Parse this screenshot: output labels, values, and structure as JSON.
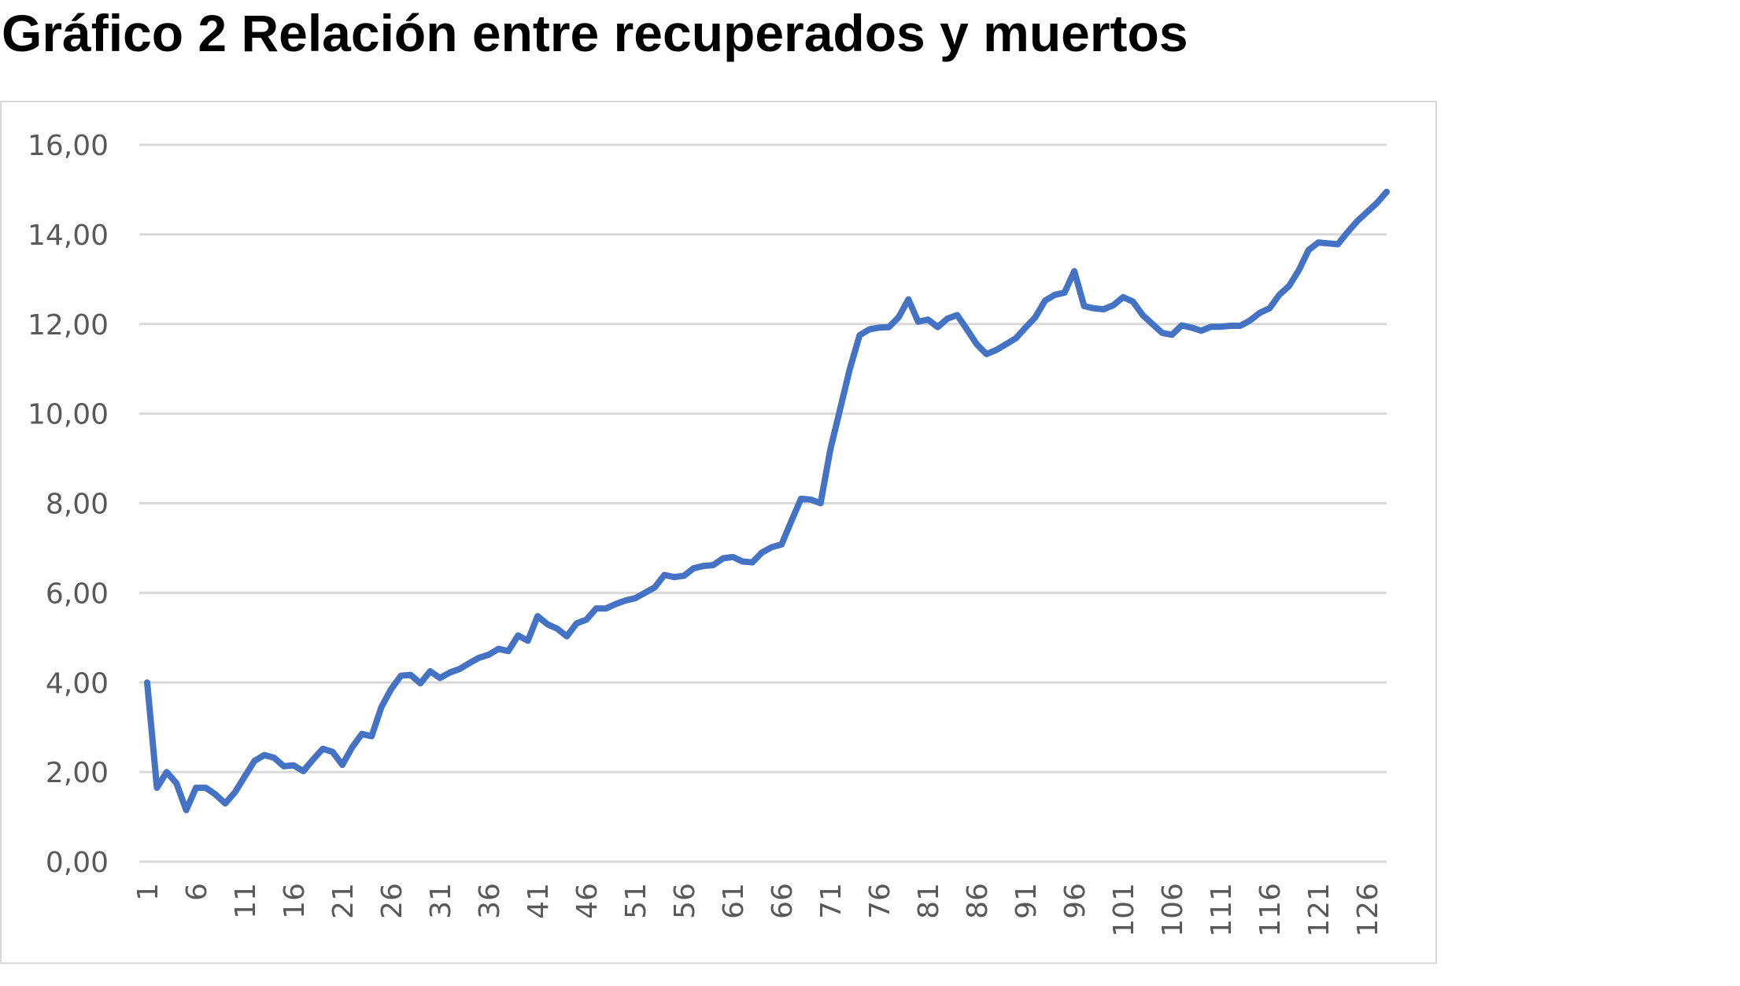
{
  "title": "Gráfico 2 Relación entre recuperados y muertos",
  "chart_data": {
    "type": "line",
    "title": "Gráfico 2 Relación entre recuperados y muertos",
    "xlabel": "",
    "ylabel": "",
    "ylim": [
      0,
      16
    ],
    "y_ticks": [
      "0,00",
      "2,00",
      "4,00",
      "6,00",
      "8,00",
      "10,00",
      "12,00",
      "14,00",
      "16,00"
    ],
    "x_ticks": [
      "1",
      "6",
      "11",
      "16",
      "21",
      "26",
      "31",
      "36",
      "41",
      "46",
      "51",
      "56",
      "61",
      "66",
      "71",
      "76",
      "81",
      "86",
      "91",
      "96",
      "101",
      "106",
      "111",
      "116",
      "121",
      "126"
    ],
    "grid": true,
    "legend": "none",
    "line_color": "#4472C4",
    "x": [
      1,
      2,
      3,
      4,
      5,
      6,
      7,
      8,
      9,
      10,
      11,
      12,
      13,
      14,
      15,
      16,
      17,
      18,
      19,
      20,
      21,
      22,
      23,
      24,
      25,
      26,
      27,
      28,
      29,
      30,
      31,
      32,
      33,
      34,
      35,
      36,
      37,
      38,
      39,
      40,
      41,
      42,
      43,
      44,
      45,
      46,
      47,
      48,
      49,
      50,
      51,
      52,
      53,
      54,
      55,
      56,
      57,
      58,
      59,
      60,
      61,
      62,
      63,
      64,
      65,
      66,
      67,
      68,
      69,
      70,
      71,
      72,
      73,
      74,
      75,
      76,
      77,
      78,
      79,
      80,
      81,
      82,
      83,
      84,
      85,
      86,
      87,
      88,
      89,
      90,
      91,
      92,
      93,
      94,
      95,
      96,
      97,
      98,
      99,
      100,
      101,
      102,
      103,
      104,
      105,
      106,
      107,
      108,
      109,
      110,
      111,
      112,
      113,
      114,
      115,
      116,
      117,
      118,
      119,
      120,
      121,
      122,
      123,
      124,
      125,
      126,
      127,
      128
    ],
    "values": [
      4.0,
      1.65,
      2.0,
      1.75,
      1.15,
      1.65,
      1.65,
      1.5,
      1.3,
      1.55,
      1.9,
      2.25,
      2.38,
      2.32,
      2.13,
      2.15,
      2.02,
      2.28,
      2.52,
      2.45,
      2.16,
      2.55,
      2.85,
      2.8,
      3.45,
      3.85,
      4.15,
      4.17,
      3.98,
      4.25,
      4.1,
      4.22,
      4.3,
      4.43,
      4.55,
      4.62,
      4.75,
      4.7,
      5.05,
      4.93,
      5.48,
      5.3,
      5.2,
      5.03,
      5.32,
      5.4,
      5.65,
      5.65,
      5.75,
      5.83,
      5.88,
      6.0,
      6.12,
      6.4,
      6.35,
      6.38,
      6.55,
      6.6,
      6.62,
      6.77,
      6.8,
      6.7,
      6.68,
      6.9,
      7.02,
      7.08,
      7.6,
      8.1,
      8.08,
      8.0,
      9.2,
      10.1,
      11.0,
      11.75,
      11.88,
      11.92,
      11.93,
      12.15,
      12.55,
      12.05,
      12.1,
      11.93,
      12.12,
      12.2,
      11.88,
      11.55,
      11.33,
      11.42,
      11.55,
      11.68,
      11.92,
      12.15,
      12.52,
      12.65,
      12.7,
      13.18,
      12.4,
      12.35,
      12.33,
      12.42,
      12.6,
      12.5,
      12.2,
      12.0,
      11.8,
      11.76,
      11.97,
      11.92,
      11.85,
      11.94,
      11.94,
      11.96,
      11.96,
      12.08,
      12.25,
      12.35,
      12.65,
      12.85,
      13.2,
      13.65,
      13.82,
      13.8,
      13.78,
      14.05,
      14.3,
      14.5,
      14.7,
      14.95
    ]
  }
}
